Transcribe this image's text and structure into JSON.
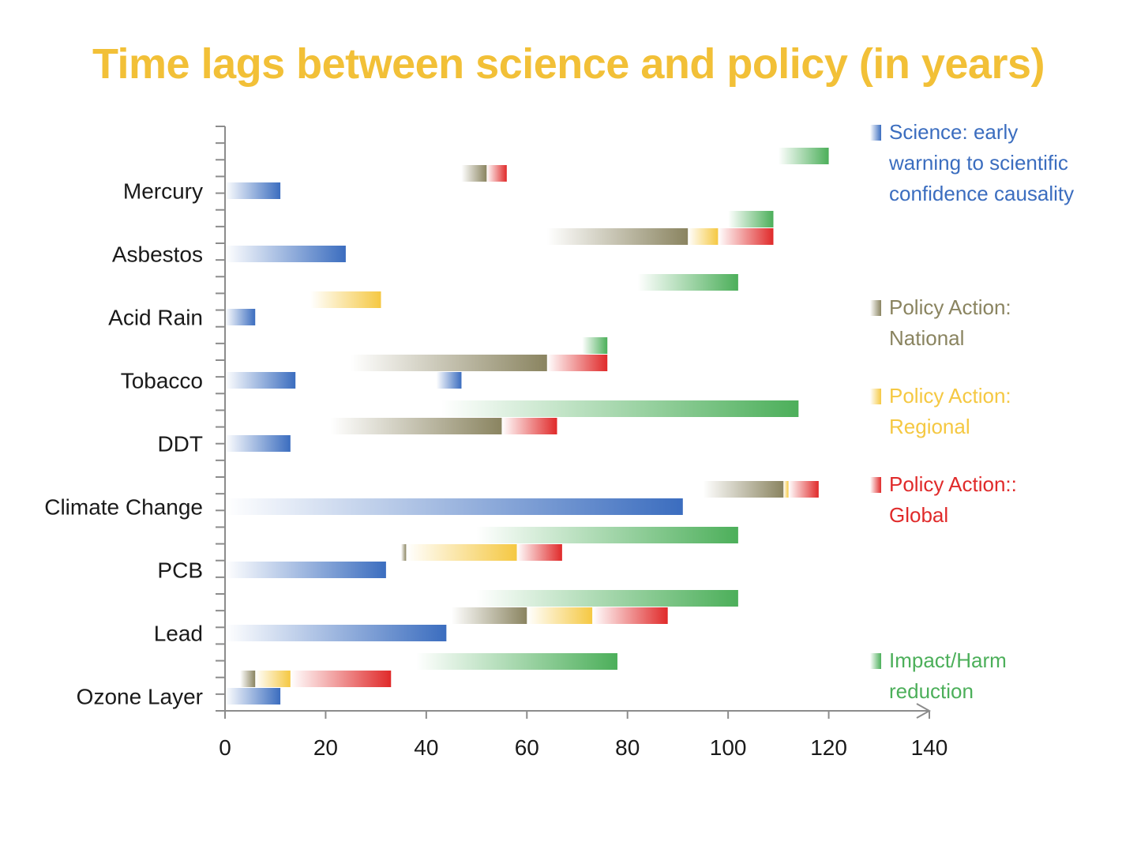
{
  "chart_data": {
    "type": "bar",
    "title": "Time lags between science and policy (in years)",
    "xlim": [
      0,
      140
    ],
    "xticks": [
      0,
      20,
      40,
      60,
      80,
      100,
      120,
      140
    ],
    "categories": [
      "Mercury",
      "Asbestos",
      "Acid Rain",
      "Tobacco",
      "DDT",
      "Climate Change",
      "PCB",
      "Lead",
      "Ozone Layer"
    ],
    "series_styles": {
      "science": {
        "color": "#3b6dbf"
      },
      "national": {
        "color": "#8a8460"
      },
      "regional": {
        "color": "#f5c842"
      },
      "global": {
        "color": "#e02a2a"
      },
      "impact": {
        "color": "#4caf5a"
      }
    },
    "legend": [
      {
        "key": "science",
        "lines": [
          "Science: early",
          "warning to scientific",
          "confidence causality"
        ],
        "color": "#3b6dbf"
      },
      {
        "key": "national",
        "lines": [
          "Policy Action:",
          "National"
        ],
        "color": "#8a8460"
      },
      {
        "key": "regional",
        "lines": [
          "Policy Action:",
          "Regional"
        ],
        "color": "#f5c842"
      },
      {
        "key": "global",
        "lines": [
          "Policy Action::",
          "Global"
        ],
        "color": "#e02a2a"
      },
      {
        "key": "impact",
        "lines": [
          "Impact/Harm",
          "reduction"
        ],
        "color": "#4caf5a"
      }
    ],
    "groups": [
      {
        "name": "Mercury",
        "rows": [
          [
            {
              "s": "impact",
              "from": 110,
              "to": 120
            }
          ],
          [
            {
              "s": "national",
              "from": 47,
              "to": 52
            },
            {
              "s": "global",
              "from": 52,
              "to": 56
            }
          ],
          [
            {
              "s": "science",
              "from": 0,
              "to": 11
            }
          ]
        ]
      },
      {
        "name": "Asbestos",
        "rows": [
          [
            {
              "s": "impact",
              "from": 100,
              "to": 109
            }
          ],
          [
            {
              "s": "national",
              "from": 64,
              "to": 92
            },
            {
              "s": "regional",
              "from": 92,
              "to": 98
            },
            {
              "s": "global",
              "from": 98,
              "to": 109
            }
          ],
          [
            {
              "s": "science",
              "from": 0,
              "to": 24
            }
          ]
        ]
      },
      {
        "name": "Acid Rain",
        "rows": [
          [
            {
              "s": "impact",
              "from": 82,
              "to": 102
            }
          ],
          [
            {
              "s": "regional",
              "from": 17,
              "to": 31
            }
          ],
          [
            {
              "s": "science",
              "from": 0,
              "to": 6
            }
          ]
        ]
      },
      {
        "name": "Tobacco",
        "rows": [
          [
            {
              "s": "impact",
              "from": 71,
              "to": 76
            }
          ],
          [
            {
              "s": "national",
              "from": 25,
              "to": 64
            },
            {
              "s": "global",
              "from": 64,
              "to": 76
            }
          ],
          [
            {
              "s": "science",
              "from": 0,
              "to": 14
            },
            {
              "s": "science",
              "from": 42,
              "to": 47
            }
          ]
        ]
      },
      {
        "name": "DDT",
        "rows": [
          [
            {
              "s": "impact",
              "from": 43,
              "to": 114
            }
          ],
          [
            {
              "s": "national",
              "from": 21,
              "to": 55
            },
            {
              "s": "global",
              "from": 55,
              "to": 66
            }
          ],
          [
            {
              "s": "science",
              "from": 0,
              "to": 13
            }
          ]
        ]
      },
      {
        "name": "Climate Change",
        "rows": [
          [
            {
              "s": "national",
              "from": 95,
              "to": 111
            },
            {
              "s": "regional",
              "from": 111,
              "to": 112
            },
            {
              "s": "global",
              "from": 112,
              "to": 118
            }
          ],
          [
            {
              "s": "science",
              "from": 0,
              "to": 91
            }
          ]
        ]
      },
      {
        "name": "PCB",
        "rows": [
          [
            {
              "s": "impact",
              "from": 50,
              "to": 102
            }
          ],
          [
            {
              "s": "national",
              "from": 35,
              "to": 36
            },
            {
              "s": "regional",
              "from": 36,
              "to": 58
            },
            {
              "s": "global",
              "from": 58,
              "to": 67
            }
          ],
          [
            {
              "s": "science",
              "from": 0,
              "to": 32
            }
          ]
        ]
      },
      {
        "name": "Lead",
        "rows": [
          [
            {
              "s": "impact",
              "from": 50,
              "to": 102
            }
          ],
          [
            {
              "s": "national",
              "from": 45,
              "to": 60
            },
            {
              "s": "regional",
              "from": 60,
              "to": 73
            },
            {
              "s": "global",
              "from": 73,
              "to": 88
            }
          ],
          [
            {
              "s": "science",
              "from": 0,
              "to": 44
            }
          ]
        ]
      },
      {
        "name": "Ozone Layer",
        "rows": [
          [
            {
              "s": "impact",
              "from": 38,
              "to": 78
            }
          ],
          [
            {
              "s": "national",
              "from": 3,
              "to": 6
            },
            {
              "s": "regional",
              "from": 6,
              "to": 13
            },
            {
              "s": "global",
              "from": 13,
              "to": 33
            }
          ],
          [
            {
              "s": "science",
              "from": 0,
              "to": 11
            }
          ]
        ]
      }
    ]
  }
}
